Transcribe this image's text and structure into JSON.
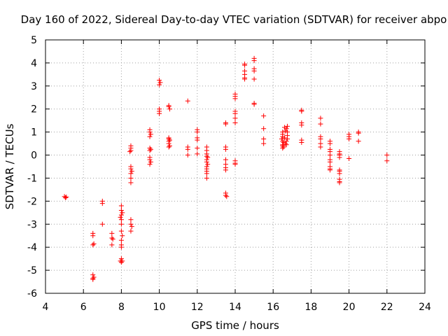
{
  "chart_data": {
    "type": "scatter",
    "title": "Day 160 of 2022, Sidereal Day-to-day VTEC variation (SDTVAR) for receiver abpo",
    "xlabel": "GPS time / hours",
    "ylabel": "SDTVAR / TECUs",
    "xlim": [
      4,
      24
    ],
    "ylim": [
      -6,
      5
    ],
    "xticks": [
      "4",
      "6",
      "8",
      "10",
      "12",
      "14",
      "16",
      "18",
      "20",
      "22",
      "24"
    ],
    "yticks": [
      "5",
      "4",
      "3",
      "2",
      "1",
      "0",
      "-1",
      "-2",
      "-3",
      "-4",
      "-5",
      "-6"
    ],
    "grid": true,
    "marker": "+",
    "color": "#ff0000",
    "series": [
      {
        "name": "SDTVAR",
        "points": [
          [
            5.0,
            -1.8
          ],
          [
            5.05,
            -1.85
          ],
          [
            5.1,
            -1.82
          ],
          [
            6.5,
            -3.4
          ],
          [
            6.5,
            -3.5
          ],
          [
            6.55,
            -3.85
          ],
          [
            6.5,
            -3.9
          ],
          [
            6.5,
            -5.2
          ],
          [
            6.55,
            -5.3
          ],
          [
            6.5,
            -5.35
          ],
          [
            6.5,
            -5.4
          ],
          [
            7.0,
            -2.0
          ],
          [
            7.0,
            -2.1
          ],
          [
            7.0,
            -3.0
          ],
          [
            7.5,
            -3.4
          ],
          [
            7.5,
            -3.6
          ],
          [
            7.55,
            -3.65
          ],
          [
            7.5,
            -3.9
          ],
          [
            8.0,
            -2.2
          ],
          [
            8.0,
            -2.4
          ],
          [
            8.05,
            -2.5
          ],
          [
            8.0,
            -2.6
          ],
          [
            7.95,
            -2.7
          ],
          [
            8.0,
            -2.8
          ],
          [
            8.0,
            -3.0
          ],
          [
            8.0,
            -3.3
          ],
          [
            8.05,
            -3.5
          ],
          [
            8.0,
            -3.7
          ],
          [
            8.0,
            -3.9
          ],
          [
            8.0,
            -4.0
          ],
          [
            8.0,
            -4.5
          ],
          [
            8.05,
            -4.6
          ],
          [
            7.95,
            -4.6
          ],
          [
            8.0,
            -4.65
          ],
          [
            8.5,
            0.4
          ],
          [
            8.5,
            0.3
          ],
          [
            8.45,
            0.15
          ],
          [
            8.5,
            0.2
          ],
          [
            8.5,
            -0.5
          ],
          [
            8.5,
            -0.6
          ],
          [
            8.55,
            -0.7
          ],
          [
            8.5,
            -0.8
          ],
          [
            8.5,
            -1.0
          ],
          [
            8.5,
            -1.2
          ],
          [
            8.5,
            -2.8
          ],
          [
            8.5,
            -3.0
          ],
          [
            8.55,
            -3.1
          ],
          [
            8.5,
            -3.3
          ],
          [
            9.5,
            1.1
          ],
          [
            9.5,
            1.0
          ],
          [
            9.55,
            0.9
          ],
          [
            9.5,
            0.8
          ],
          [
            9.5,
            0.3
          ],
          [
            9.55,
            0.25
          ],
          [
            9.5,
            0.2
          ],
          [
            9.5,
            -0.1
          ],
          [
            9.5,
            -0.2
          ],
          [
            9.55,
            -0.3
          ],
          [
            9.5,
            -0.4
          ],
          [
            10.0,
            3.25
          ],
          [
            10.05,
            3.15
          ],
          [
            10.0,
            3.05
          ],
          [
            10.0,
            2.0
          ],
          [
            10.0,
            1.9
          ],
          [
            10.0,
            1.8
          ],
          [
            10.5,
            2.15
          ],
          [
            10.5,
            2.1
          ],
          [
            10.55,
            2.0
          ],
          [
            10.5,
            0.75
          ],
          [
            10.5,
            0.7
          ],
          [
            10.55,
            0.65
          ],
          [
            10.5,
            0.6
          ],
          [
            10.5,
            0.5
          ],
          [
            10.55,
            0.4
          ],
          [
            10.5,
            0.35
          ],
          [
            11.5,
            2.35
          ],
          [
            11.5,
            0.35
          ],
          [
            11.5,
            0.25
          ],
          [
            11.5,
            0.0
          ],
          [
            12.0,
            1.1
          ],
          [
            12.0,
            1.0
          ],
          [
            12.0,
            0.75
          ],
          [
            12.0,
            0.65
          ],
          [
            12.0,
            0.3
          ],
          [
            12.0,
            0.05
          ],
          [
            12.5,
            0.35
          ],
          [
            12.5,
            0.2
          ],
          [
            12.5,
            0.05
          ],
          [
            12.5,
            -0.05
          ],
          [
            12.55,
            -0.1
          ],
          [
            12.5,
            -0.2
          ],
          [
            12.5,
            -0.3
          ],
          [
            12.55,
            -0.4
          ],
          [
            12.5,
            -0.5
          ],
          [
            12.5,
            -0.6
          ],
          [
            12.5,
            -0.7
          ],
          [
            12.5,
            -0.8
          ],
          [
            12.5,
            -1.0
          ],
          [
            13.5,
            1.4
          ],
          [
            13.5,
            1.35
          ],
          [
            13.5,
            0.35
          ],
          [
            13.5,
            0.25
          ],
          [
            13.5,
            -0.2
          ],
          [
            13.5,
            -0.4
          ],
          [
            13.5,
            -0.55
          ],
          [
            13.5,
            -0.65
          ],
          [
            13.5,
            -1.65
          ],
          [
            13.5,
            -1.75
          ],
          [
            13.55,
            -1.8
          ],
          [
            14.0,
            2.65
          ],
          [
            14.0,
            2.55
          ],
          [
            14.0,
            2.45
          ],
          [
            14.0,
            1.9
          ],
          [
            14.0,
            1.8
          ],
          [
            14.0,
            1.6
          ],
          [
            14.0,
            1.4
          ],
          [
            14.0,
            -0.25
          ],
          [
            14.0,
            -0.35
          ],
          [
            14.0,
            -0.4
          ],
          [
            14.5,
            3.95
          ],
          [
            14.5,
            3.9
          ],
          [
            14.5,
            3.65
          ],
          [
            14.5,
            3.5
          ],
          [
            14.5,
            3.35
          ],
          [
            14.5,
            3.3
          ],
          [
            15.0,
            4.2
          ],
          [
            15.0,
            4.1
          ],
          [
            15.0,
            3.75
          ],
          [
            15.0,
            3.65
          ],
          [
            15.0,
            3.3
          ],
          [
            15.0,
            2.25
          ],
          [
            15.0,
            2.2
          ],
          [
            15.5,
            1.7
          ],
          [
            15.5,
            1.15
          ],
          [
            15.5,
            0.7
          ],
          [
            15.5,
            0.5
          ],
          [
            16.5,
            1.0
          ],
          [
            16.5,
            0.9
          ],
          [
            16.5,
            0.8
          ],
          [
            16.45,
            0.7
          ],
          [
            16.5,
            0.6
          ],
          [
            16.55,
            0.55
          ],
          [
            16.5,
            0.45
          ],
          [
            16.5,
            0.4
          ],
          [
            16.55,
            0.35
          ],
          [
            16.5,
            0.3
          ],
          [
            16.6,
            1.2
          ],
          [
            16.65,
            1.05
          ],
          [
            16.7,
            1.15
          ],
          [
            16.6,
            0.75
          ],
          [
            16.7,
            0.6
          ],
          [
            16.65,
            0.5
          ],
          [
            16.7,
            0.45
          ],
          [
            16.75,
            1.25
          ],
          [
            16.75,
            1.0
          ],
          [
            16.75,
            0.85
          ],
          [
            16.75,
            0.7
          ],
          [
            17.5,
            1.95
          ],
          [
            17.5,
            1.9
          ],
          [
            17.5,
            1.4
          ],
          [
            17.5,
            1.3
          ],
          [
            17.5,
            0.65
          ],
          [
            17.5,
            0.55
          ],
          [
            18.5,
            1.6
          ],
          [
            18.5,
            1.35
          ],
          [
            18.5,
            0.8
          ],
          [
            18.5,
            0.7
          ],
          [
            18.5,
            0.5
          ],
          [
            18.5,
            0.35
          ],
          [
            19.0,
            0.6
          ],
          [
            19.0,
            0.5
          ],
          [
            19.0,
            0.25
          ],
          [
            19.0,
            0.15
          ],
          [
            19.0,
            0.0
          ],
          [
            19.0,
            -0.2
          ],
          [
            19.0,
            -0.3
          ],
          [
            19.0,
            -0.5
          ],
          [
            19.0,
            -0.6
          ],
          [
            19.0,
            -0.65
          ],
          [
            19.5,
            0.15
          ],
          [
            19.5,
            0.05
          ],
          [
            19.5,
            0.0
          ],
          [
            19.5,
            -0.1
          ],
          [
            19.5,
            -0.65
          ],
          [
            19.5,
            -0.7
          ],
          [
            19.5,
            -0.8
          ],
          [
            19.5,
            -1.05
          ],
          [
            19.5,
            -1.15
          ],
          [
            19.5,
            -1.2
          ],
          [
            20.0,
            0.9
          ],
          [
            20.0,
            0.8
          ],
          [
            20.0,
            0.7
          ],
          [
            20.0,
            -0.15
          ],
          [
            20.5,
            1.0
          ],
          [
            20.5,
            0.95
          ],
          [
            20.5,
            0.6
          ],
          [
            22.0,
            0.0
          ],
          [
            22.0,
            -0.25
          ]
        ]
      }
    ]
  }
}
